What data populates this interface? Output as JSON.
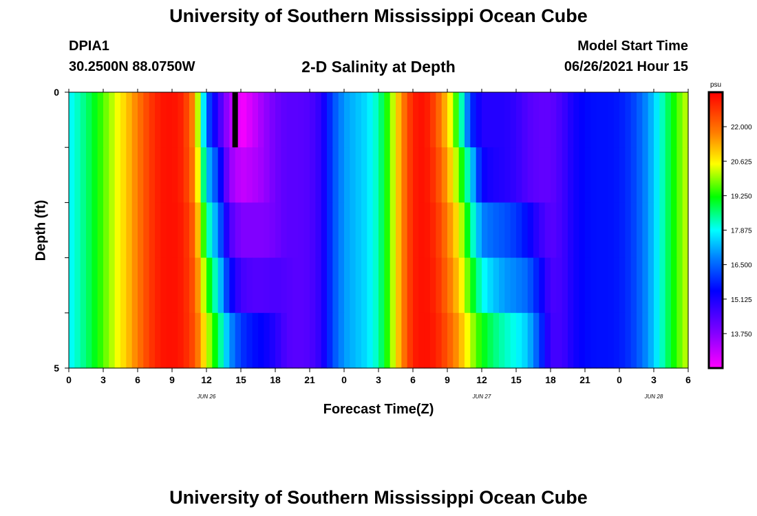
{
  "page": {
    "title": "University of Southern Mississippi Ocean Cube",
    "footer_title": "University of Southern Mississippi Ocean Cube",
    "station": "DPIA1",
    "coordinates": "30.2500N  88.0750W",
    "subtitle": "2-D Salinity at Depth",
    "model_start_label": "Model Start Time",
    "model_start_value": "06/26/2021 Hour 15"
  },
  "chart_data": {
    "type": "heatmap",
    "title": "2-D Salinity at Depth",
    "xlabel": "Forecast Time(Z)",
    "ylabel": "Depth (ft)",
    "x_tick_labels": [
      "0",
      "3",
      "6",
      "9",
      "12",
      "15",
      "18",
      "21",
      "0",
      "3",
      "6",
      "9",
      "12",
      "15",
      "18",
      "21",
      "0",
      "3",
      "6"
    ],
    "x_range_hours": [
      0,
      54
    ],
    "day_labels": [
      {
        "label": "JUN 26",
        "hour": 12
      },
      {
        "label": "JUN 27",
        "hour": 36
      },
      {
        "label": "JUN 28",
        "hour": 51
      }
    ],
    "y_range": [
      0,
      5
    ],
    "y_tick_labels": [
      "0",
      "5"
    ],
    "depth_levels": 5,
    "colorbar": {
      "units": "psu",
      "min": 12.375,
      "max": 23.375,
      "tick_values": [
        22.0,
        20.625,
        19.25,
        17.875,
        16.5,
        15.125,
        13.75
      ],
      "tick_labels": [
        "22.000",
        "20.625",
        "19.250",
        "17.875",
        "16.500",
        "15.125",
        "13.750"
      ]
    },
    "surface_profile_hours": [
      0,
      1,
      2,
      3,
      4,
      5,
      6,
      7,
      8,
      9,
      10,
      11,
      12,
      13,
      14,
      15,
      16,
      17,
      18,
      19,
      20,
      21,
      22,
      23,
      24,
      25,
      26,
      27,
      28,
      29,
      30,
      31,
      32,
      33,
      34,
      35,
      36,
      37,
      38,
      39,
      40,
      41,
      42,
      43,
      44,
      45,
      46,
      47,
      48,
      49,
      50,
      51,
      52,
      53,
      54
    ],
    "surface_profile_psu": [
      17.8,
      18.3,
      18.9,
      19.6,
      20.3,
      21.0,
      21.8,
      22.6,
      23.1,
      23.2,
      22.9,
      21.4,
      16.5,
      14.8,
      13.3,
      12.4,
      12.9,
      13.5,
      14.0,
      14.3,
      14.3,
      14.4,
      14.9,
      16.2,
      17.0,
      17.3,
      17.6,
      18.3,
      19.7,
      21.6,
      23.0,
      23.2,
      22.4,
      21.0,
      19.0,
      16.0,
      15.0,
      15.0,
      15.0,
      14.8,
      14.4,
      14.2,
      14.2,
      14.6,
      15.2,
      15.5,
      15.6,
      15.6,
      15.7,
      16.0,
      16.6,
      17.4,
      18.5,
      19.5,
      20.3
    ],
    "depth_profiles_psu": [
      [
        17.8,
        18.3,
        18.9,
        19.6,
        20.3,
        21.0,
        21.8,
        22.6,
        23.1,
        23.2,
        22.9,
        21.4,
        16.5,
        14.8,
        13.3,
        12.4,
        12.9,
        13.5,
        14.0,
        14.3,
        14.3,
        14.4,
        14.9,
        16.2,
        17.0,
        17.3,
        17.6,
        18.3,
        19.7,
        21.6,
        23.0,
        23.2,
        22.4,
        21.0,
        19.0,
        16.0,
        15.0,
        15.0,
        15.0,
        14.8,
        14.4,
        14.2,
        14.2,
        14.6,
        15.2,
        15.5,
        15.6,
        15.6,
        15.7,
        16.0,
        16.6,
        17.4,
        18.5,
        19.5,
        20.3
      ],
      [
        17.8,
        18.3,
        18.9,
        19.6,
        20.3,
        21.0,
        21.8,
        22.6,
        23.1,
        23.2,
        22.9,
        21.6,
        17.5,
        16.0,
        13.6,
        13.0,
        13.2,
        13.5,
        14.0,
        14.3,
        14.3,
        14.4,
        14.9,
        16.2,
        17.0,
        17.3,
        17.6,
        18.3,
        19.7,
        21.6,
        23.0,
        23.2,
        22.6,
        21.4,
        19.8,
        17.8,
        15.4,
        15.1,
        15.0,
        14.8,
        14.4,
        14.2,
        14.2,
        14.6,
        15.2,
        15.5,
        15.6,
        15.6,
        15.7,
        16.0,
        16.6,
        17.4,
        18.5,
        19.5,
        20.3
      ],
      [
        17.8,
        18.3,
        18.9,
        19.6,
        20.3,
        21.0,
        21.8,
        22.6,
        23.1,
        23.2,
        23.0,
        22.0,
        18.6,
        16.8,
        14.5,
        13.8,
        13.8,
        13.8,
        14.0,
        14.3,
        14.3,
        14.4,
        14.9,
        16.2,
        17.0,
        17.3,
        17.6,
        18.3,
        19.7,
        21.6,
        23.0,
        23.2,
        22.8,
        21.8,
        20.6,
        18.6,
        16.8,
        16.5,
        16.3,
        16.0,
        15.5,
        14.8,
        14.3,
        14.6,
        15.2,
        15.5,
        15.6,
        15.6,
        15.7,
        16.0,
        16.6,
        17.4,
        18.5,
        19.5,
        20.3
      ],
      [
        17.8,
        18.3,
        18.9,
        19.6,
        20.3,
        21.0,
        21.8,
        22.6,
        23.1,
        23.2,
        23.0,
        22.2,
        19.6,
        17.8,
        15.6,
        14.6,
        14.4,
        14.4,
        14.5,
        14.4,
        14.3,
        14.4,
        14.9,
        16.2,
        17.0,
        17.3,
        17.6,
        18.3,
        19.7,
        21.6,
        23.0,
        23.2,
        22.9,
        22.0,
        21.0,
        19.4,
        18.0,
        17.4,
        17.0,
        16.8,
        16.5,
        15.6,
        14.5,
        14.6,
        15.2,
        15.5,
        15.6,
        15.6,
        15.7,
        16.0,
        16.6,
        17.4,
        18.5,
        19.5,
        20.3
      ],
      [
        17.8,
        18.3,
        18.9,
        19.6,
        20.3,
        21.0,
        21.8,
        22.6,
        23.1,
        23.2,
        23.0,
        22.3,
        20.4,
        18.8,
        17.0,
        16.0,
        15.6,
        15.4,
        15.0,
        14.4,
        14.3,
        14.4,
        14.9,
        16.2,
        17.0,
        17.3,
        17.6,
        18.3,
        19.7,
        21.6,
        23.0,
        23.2,
        23.0,
        22.3,
        21.4,
        20.2,
        19.2,
        18.6,
        18.2,
        17.9,
        17.4,
        16.2,
        14.6,
        14.6,
        15.2,
        15.5,
        15.6,
        15.6,
        15.7,
        16.0,
        16.6,
        17.4,
        18.5,
        19.5,
        20.3
      ]
    ],
    "missing_cell": {
      "hour": 14.5,
      "depth_level": 0
    }
  }
}
